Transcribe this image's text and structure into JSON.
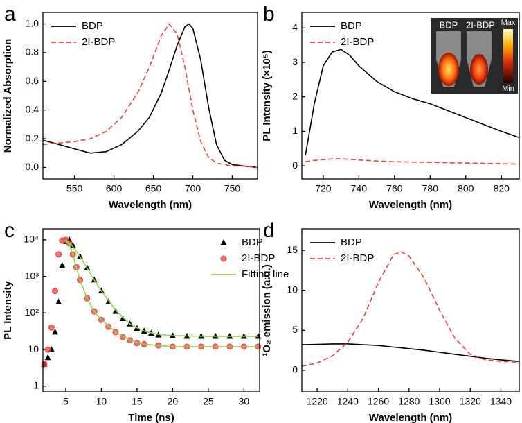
{
  "chart_data": [
    {
      "type": "line",
      "panel_label": "a",
      "x_label": "Wavelength (nm)",
      "y_label": "Normalized Absorption",
      "xlim": [
        510,
        782
      ],
      "xticks": [
        550,
        600,
        650,
        700,
        750
      ],
      "ylim": [
        -0.08,
        1.08
      ],
      "yticks": [
        {
          "value": 0,
          "label": "0.0"
        },
        0.2,
        0.4,
        0.6,
        0.8,
        {
          "value": 1,
          "label": "1.0"
        }
      ],
      "legend": "upper left",
      "x": [
        510,
        530,
        550,
        570,
        590,
        610,
        630,
        645,
        660,
        670,
        680,
        690,
        695,
        700,
        710,
        720,
        730,
        740,
        750,
        765,
        782
      ],
      "series": [
        {
          "name": "BDP",
          "color": "#000000",
          "style": "solid",
          "values": [
            0.19,
            0.16,
            0.13,
            0.1,
            0.11,
            0.16,
            0.25,
            0.35,
            0.52,
            0.68,
            0.85,
            0.98,
            1.0,
            0.97,
            0.75,
            0.42,
            0.16,
            0.05,
            0.02,
            0.01,
            0.0
          ]
        },
        {
          "name": "2I-BDP",
          "color": "#e8413c",
          "style": "dashed",
          "values": [
            0.16,
            0.17,
            0.18,
            0.2,
            0.25,
            0.35,
            0.52,
            0.7,
            0.92,
            1.0,
            0.93,
            0.7,
            0.55,
            0.4,
            0.18,
            0.07,
            0.03,
            0.02,
            0.01,
            0.01,
            0.0
          ]
        }
      ]
    },
    {
      "type": "line",
      "panel_label": "b",
      "x_label": "Wavelength (nm)",
      "y_label": "PL Intensity (×10⁵)",
      "xlim": [
        708,
        830
      ],
      "xticks": [
        720,
        740,
        760,
        780,
        800,
        820
      ],
      "ylim": [
        -0.38,
        4.45
      ],
      "yticks": [
        0,
        1,
        2,
        3,
        4
      ],
      "legend": "upper left",
      "inset_labels": [
        "BDP",
        "2I-BDP"
      ],
      "colorbar_labels": [
        "Max",
        "Min"
      ],
      "x": [
        710,
        715,
        720,
        725,
        730,
        735,
        740,
        750,
        760,
        770,
        780,
        790,
        800,
        810,
        820,
        830
      ],
      "series": [
        {
          "name": "BDP",
          "color": "#000000",
          "style": "solid",
          "values": [
            0.3,
            1.8,
            2.9,
            3.3,
            3.38,
            3.2,
            2.9,
            2.45,
            2.15,
            1.95,
            1.8,
            1.6,
            1.4,
            1.2,
            1.0,
            0.82
          ]
        },
        {
          "name": "2I-BDP",
          "color": "#e8413c",
          "style": "dashed",
          "values": [
            0.12,
            0.16,
            0.18,
            0.2,
            0.2,
            0.19,
            0.17,
            0.14,
            0.12,
            0.11,
            0.1,
            0.09,
            0.08,
            0.07,
            0.06,
            0.05
          ]
        }
      ]
    },
    {
      "type": "scatter",
      "panel_label": "c",
      "x_label": "Time (ns)",
      "y_label": "PL Intensity",
      "xlim": [
        1.8,
        32.2
      ],
      "xticks": [
        5,
        10,
        15,
        20,
        25,
        30
      ],
      "yscale": "log",
      "ylim": [
        0.7,
        20000
      ],
      "yticks": [
        1,
        10,
        {
          "value": 100,
          "label": "10²"
        },
        {
          "value": 1000,
          "label": "10³"
        },
        {
          "value": 10000,
          "label": "10⁴"
        }
      ],
      "legend": "upper right",
      "series": [
        {
          "name": "BDP",
          "color": "#000000",
          "marker": "triangle",
          "x": [
            2,
            2.5,
            3,
            3.5,
            4,
            4.5,
            5,
            5.5,
            6,
            7,
            8,
            9,
            10,
            11,
            12,
            13,
            14,
            15,
            16,
            17,
            18,
            20,
            22,
            24,
            26,
            28,
            30,
            32
          ],
          "values": [
            4,
            6,
            10,
            30,
            200,
            2000,
            9000,
            10000,
            7000,
            3500,
            1700,
            800,
            400,
            200,
            110,
            70,
            50,
            38,
            32,
            28,
            25,
            24,
            23,
            23,
            23,
            23,
            23,
            23
          ]
        },
        {
          "name": "2I-BDP",
          "color": "#e8413c",
          "marker": "circle",
          "x": [
            2,
            2.5,
            3,
            3.5,
            4,
            4.5,
            5,
            5.5,
            6,
            6.5,
            7,
            8,
            9,
            10,
            11,
            12,
            13,
            14,
            15,
            16,
            18,
            20,
            22,
            24,
            26,
            28,
            30,
            32
          ],
          "values": [
            4,
            10,
            40,
            400,
            4000,
            9500,
            10000,
            8000,
            4000,
            1800,
            800,
            250,
            110,
            65,
            42,
            30,
            22,
            18,
            15,
            14,
            13,
            12,
            12,
            12,
            12,
            12,
            12,
            12
          ]
        },
        {
          "name": "Fitting line",
          "color": "#8fd14f",
          "style": "solid",
          "x": [
            5,
            6,
            7,
            8,
            9,
            10,
            12,
            14,
            16,
            18,
            20,
            25,
            32,
            null,
            4.8,
            5.5,
            6,
            7,
            8,
            9,
            10,
            12,
            14,
            16,
            20,
            25,
            32
          ],
          "values": [
            10000,
            6500,
            3500,
            1700,
            800,
            400,
            120,
            50,
            32,
            26,
            24,
            23,
            23,
            null,
            10000,
            7500,
            4000,
            800,
            250,
            110,
            65,
            30,
            18,
            14,
            12,
            12,
            12
          ]
        }
      ]
    },
    {
      "type": "line",
      "panel_label": "d",
      "x_label": "Wavelength (nm)",
      "y_label": "¹O₂ emission (a.u.)",
      "xlim": [
        1210,
        1352
      ],
      "xticks": [
        1220,
        1240,
        1260,
        1280,
        1300,
        1320,
        1340
      ],
      "ylim": [
        -2.7,
        17.7
      ],
      "yticks": [
        0,
        5,
        10,
        15
      ],
      "legend": "upper left",
      "x": [
        1210,
        1220,
        1230,
        1240,
        1250,
        1260,
        1270,
        1275,
        1280,
        1290,
        1300,
        1310,
        1320,
        1330,
        1340,
        1352
      ],
      "series": [
        {
          "name": "BDP",
          "color": "#000000",
          "style": "solid",
          "values": [
            3.2,
            3.25,
            3.3,
            3.3,
            3.2,
            3.1,
            2.9,
            2.8,
            2.7,
            2.5,
            2.25,
            2.0,
            1.75,
            1.5,
            1.3,
            1.1
          ]
        },
        {
          "name": "2I-BDP",
          "color": "#e8413c",
          "style": "dashed",
          "values": [
            0.5,
            0.9,
            1.8,
            3.5,
            6.5,
            11,
            14.5,
            14.8,
            14.3,
            11.5,
            7.5,
            4,
            2,
            1.3,
            1.1,
            1.0
          ]
        }
      ]
    }
  ]
}
